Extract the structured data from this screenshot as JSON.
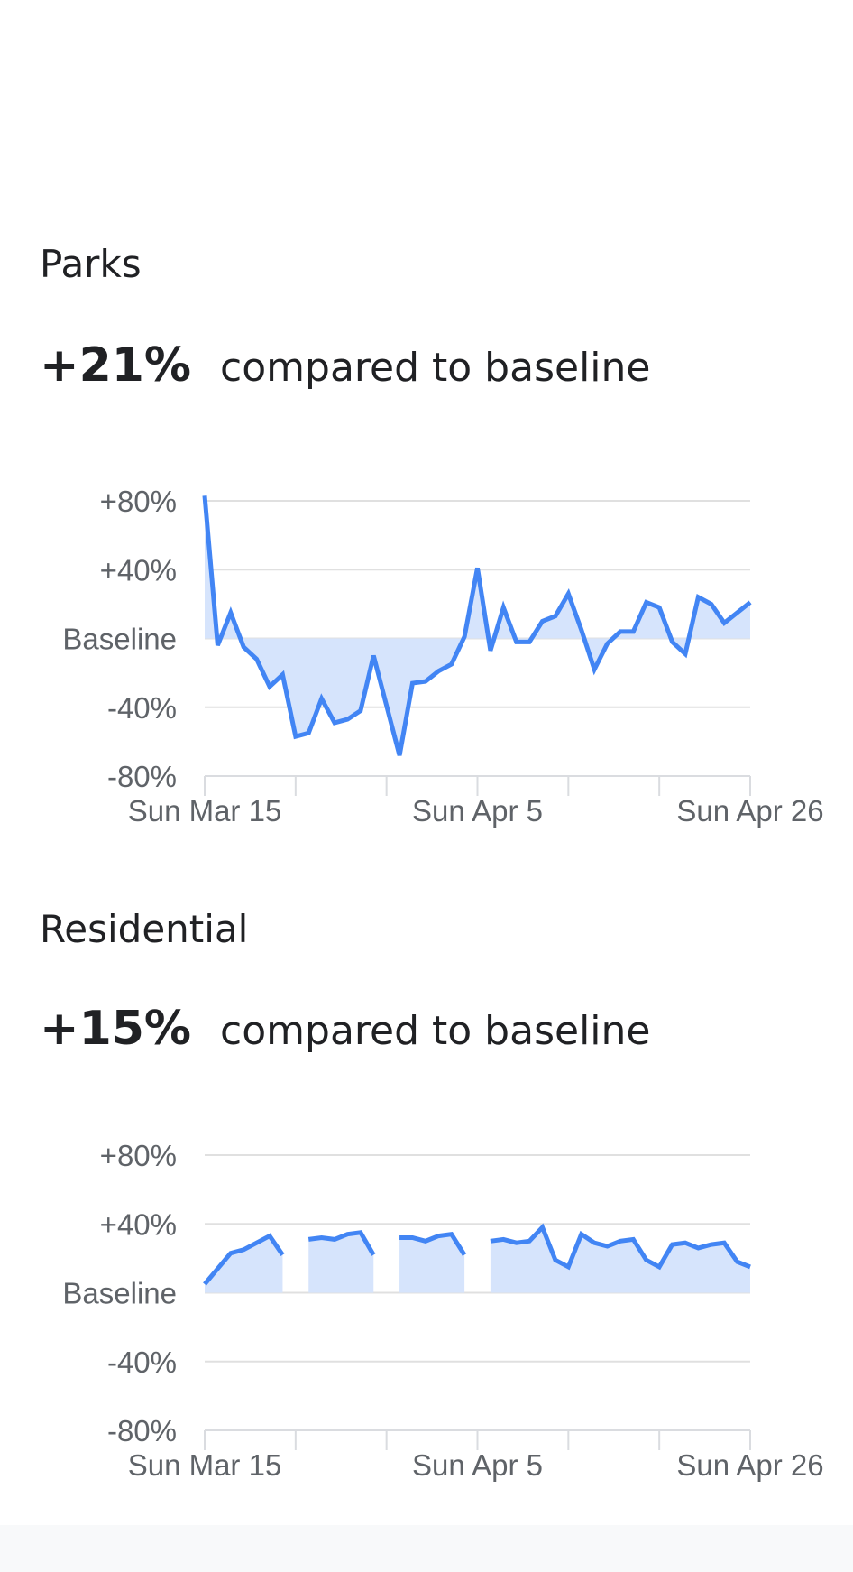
{
  "sections": [
    {
      "title": "Parks",
      "percent": "+21%",
      "compare_text": "compared to baseline"
    },
    {
      "title": "Residential",
      "percent": "+15%",
      "compare_text": "compared to baseline"
    }
  ],
  "colors": {
    "line": "#4285f4",
    "fill": "#d6e4fc",
    "grid": "#e0e0e0",
    "axis": "#dadce0",
    "text": "#5f6368"
  },
  "chart_data": [
    {
      "type": "area",
      "title": "Parks",
      "ylabel": "",
      "xlabel": "",
      "ylim": [
        -80,
        80
      ],
      "y_ticks": [
        80,
        40,
        0,
        -40,
        -80
      ],
      "y_tick_labels": [
        "+80%",
        "+40%",
        "Baseline",
        "-40%",
        "-80%"
      ],
      "x_ticks": [
        "Sun Mar 15",
        "Sun Apr 5",
        "Sun Apr 26"
      ],
      "x_range": [
        "2020-03-15",
        "2020-04-26"
      ],
      "grid": true,
      "series": [
        {
          "x": [
            "2020-03-15",
            "2020-03-16",
            "2020-03-17",
            "2020-03-18",
            "2020-03-19",
            "2020-03-20",
            "2020-03-21",
            "2020-03-22",
            "2020-03-23",
            "2020-03-24",
            "2020-03-25",
            "2020-03-26",
            "2020-03-27",
            "2020-03-28",
            "2020-03-29",
            "2020-03-30",
            "2020-03-31",
            "2020-04-01",
            "2020-04-02",
            "2020-04-03",
            "2020-04-04",
            "2020-04-05",
            "2020-04-06",
            "2020-04-07",
            "2020-04-08",
            "2020-04-09",
            "2020-04-10",
            "2020-04-11",
            "2020-04-12",
            "2020-04-13",
            "2020-04-14",
            "2020-04-15",
            "2020-04-16",
            "2020-04-17",
            "2020-04-18",
            "2020-04-19",
            "2020-04-20",
            "2020-04-21",
            "2020-04-22",
            "2020-04-23",
            "2020-04-24",
            "2020-04-25",
            "2020-04-26"
          ],
          "values": [
            83,
            -4,
            15,
            -5,
            -12,
            -28,
            -21,
            -57,
            -55,
            -35,
            -49,
            -47,
            -42,
            -10,
            -39,
            -68,
            -26,
            -25,
            -19,
            -15,
            1,
            41,
            -7,
            18,
            -2,
            -2,
            10,
            13,
            26,
            5,
            -18,
            -3,
            4,
            4,
            21,
            18,
            -2,
            -9,
            24,
            20,
            9,
            15,
            21
          ]
        }
      ]
    },
    {
      "type": "area",
      "title": "Residential",
      "ylabel": "",
      "xlabel": "",
      "ylim": [
        -80,
        80
      ],
      "y_ticks": [
        80,
        40,
        0,
        -40,
        -80
      ],
      "y_tick_labels": [
        "+80%",
        "+40%",
        "Baseline",
        "-40%",
        "-80%"
      ],
      "x_ticks": [
        "Sun Mar 15",
        "Sun Apr 5",
        "Sun Apr 26"
      ],
      "x_range": [
        "2020-03-15",
        "2020-04-26"
      ],
      "grid": true,
      "series": [
        {
          "x": [
            "2020-03-15",
            "2020-03-16",
            "2020-03-17",
            "2020-03-18",
            "2020-03-19",
            "2020-03-20",
            "2020-03-21",
            "2020-03-22",
            "2020-03-23",
            "2020-03-24",
            "2020-03-25",
            "2020-03-26",
            "2020-03-27",
            "2020-03-28",
            "2020-03-29",
            "2020-03-30",
            "2020-03-31",
            "2020-04-01",
            "2020-04-02",
            "2020-04-03",
            "2020-04-04",
            "2020-04-05",
            "2020-04-06",
            "2020-04-07",
            "2020-04-08",
            "2020-04-09",
            "2020-04-10",
            "2020-04-11",
            "2020-04-12",
            "2020-04-13",
            "2020-04-14",
            "2020-04-15",
            "2020-04-16",
            "2020-04-17",
            "2020-04-18",
            "2020-04-19",
            "2020-04-20",
            "2020-04-21",
            "2020-04-22",
            "2020-04-23",
            "2020-04-24",
            "2020-04-25",
            "2020-04-26"
          ],
          "values": [
            5,
            14,
            23,
            25,
            29,
            33,
            22,
            null,
            31,
            32,
            31,
            34,
            35,
            22,
            null,
            32,
            32,
            30,
            33,
            34,
            22,
            null,
            30,
            31,
            29,
            30,
            38,
            19,
            15,
            34,
            29,
            27,
            30,
            31,
            19,
            15,
            28,
            29,
            26,
            28,
            29,
            18,
            15
          ]
        }
      ]
    }
  ]
}
